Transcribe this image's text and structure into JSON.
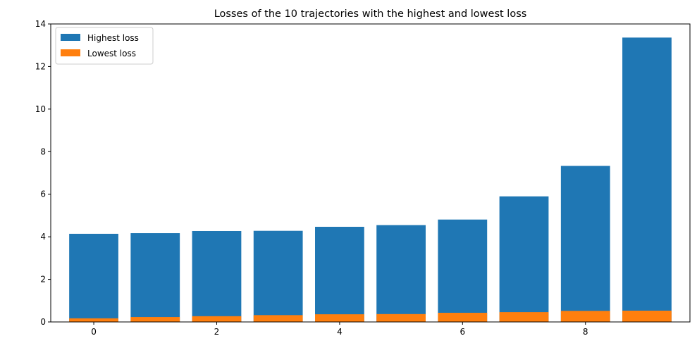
{
  "chart_data": {
    "type": "bar",
    "title": "Losses of the 10 trajectories with the highest and lowest loss",
    "xlabel": "",
    "ylabel": "",
    "x": [
      0,
      1,
      2,
      3,
      4,
      5,
      6,
      7,
      8,
      9
    ],
    "xticks": [
      0,
      2,
      4,
      6,
      8
    ],
    "xticklabels": [
      "0",
      "2",
      "4",
      "6",
      "8"
    ],
    "yticks": [
      0,
      2,
      4,
      6,
      8,
      10,
      12,
      14
    ],
    "yticklabels": [
      "0",
      "2",
      "4",
      "6",
      "8",
      "10",
      "12",
      "14"
    ],
    "xlim": [
      -0.7,
      9.7
    ],
    "ylim": [
      0,
      14
    ],
    "grid": false,
    "legend_position": "top-left",
    "series": [
      {
        "name": "Highest loss",
        "color": "#1f77b4",
        "values": [
          4.14,
          4.17,
          4.27,
          4.28,
          4.47,
          4.55,
          4.81,
          5.9,
          7.33,
          13.36
        ]
      },
      {
        "name": "Lowest loss",
        "color": "#ff7f0e",
        "values": [
          0.17,
          0.23,
          0.27,
          0.32,
          0.36,
          0.37,
          0.43,
          0.46,
          0.52,
          0.53
        ]
      }
    ]
  }
}
